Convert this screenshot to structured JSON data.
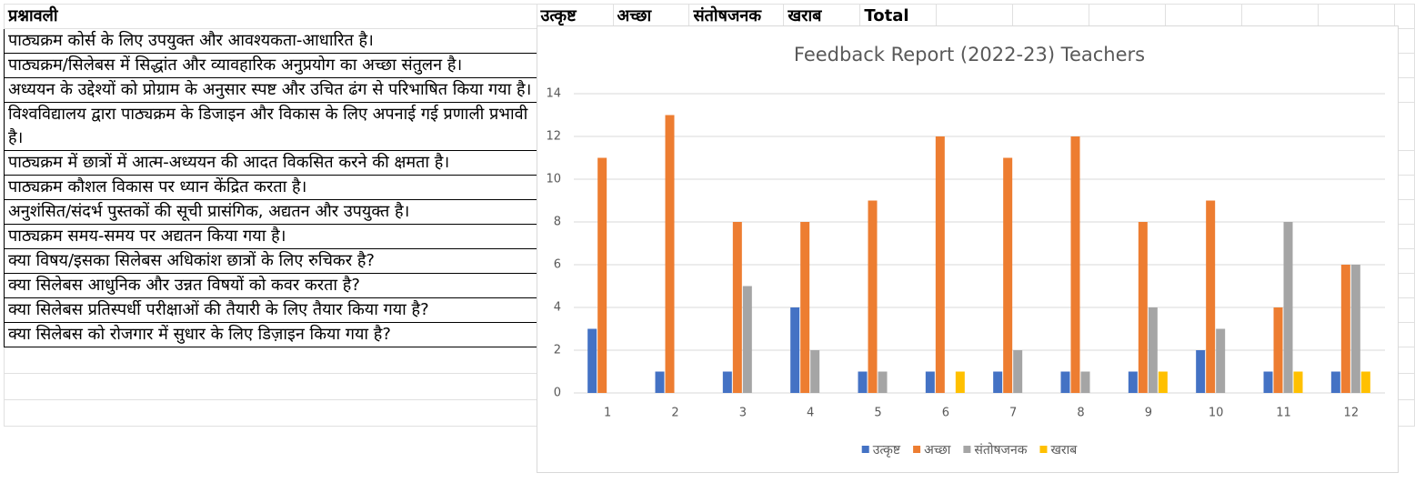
{
  "sheet": {
    "headers": [
      "प्रश्नावली",
      "उत्कृष्ट",
      "अच्छा",
      "संतोषजनक",
      "खराब",
      "Total"
    ],
    "rows": [
      "पाठ्यक्रम कोर्स के लिए उपयुक्त और आवश्यकता-आधारित है।",
      "पाठ्यक्रम/सिलेबस में सिद्धांत और व्यावहारिक अनुप्रयोग का अच्छा संतुलन है।",
      "अध्ययन के उद्देश्यों को प्रोग्राम के अनुसार स्पष्ट और उचित ढंग से परिभाषित किया गया है।",
      "विश्वविद्यालय द्वारा पाठ्यक्रम के डिजाइन और विकास के लिए अपनाई गई प्रणाली प्रभावी है।",
      "पाठ्यक्रम में छात्रों में आत्म-अध्ययन की आदत विकसित करने की क्षमता है।",
      "पाठ्यक्रम कौशल विकास पर ध्यान केंद्रित करता है।",
      "अनुशंसित/संदर्भ पुस्तकों की सूची प्रासंगिक, अद्यतन और उपयुक्त है।",
      "पाठ्यक्रम समय-समय पर अद्यतन किया गया है।",
      "क्या विषय/इसका सिलेबस अधिकांश छात्रों के लिए रुचिकर है?",
      "क्या सिलेबस आधुनिक और उन्नत विषयों को कवर करता है?",
      "क्या सिलेबस प्रतिस्पर्धी परीक्षाओं की तैयारी के लिए तैयार किया गया है?",
      "क्या सिलेबस को रोजगार में सुधार के लिए डिज़ाइन किया गया है?"
    ]
  },
  "chart_data": {
    "type": "bar",
    "title": "Feedback Report (2022-23) Teachers",
    "categories": [
      "1",
      "2",
      "3",
      "4",
      "5",
      "6",
      "7",
      "8",
      "9",
      "10",
      "11",
      "12"
    ],
    "series": [
      {
        "name": "उत्कृष्ट",
        "color": "#4472c4",
        "values": [
          3,
          1,
          1,
          4,
          1,
          1,
          1,
          1,
          1,
          2,
          1,
          1
        ]
      },
      {
        "name": "अच्छा",
        "color": "#ed7d31",
        "values": [
          11,
          13,
          8,
          8,
          9,
          12,
          11,
          12,
          8,
          9,
          4,
          6
        ]
      },
      {
        "name": "संतोषजनक",
        "color": "#a5a5a5",
        "values": [
          0,
          0,
          5,
          2,
          1,
          0,
          2,
          1,
          4,
          3,
          8,
          6
        ]
      },
      {
        "name": "खराब",
        "color": "#ffc000",
        "values": [
          0,
          0,
          0,
          0,
          0,
          1,
          0,
          0,
          1,
          0,
          1,
          1
        ]
      }
    ],
    "ylim": [
      0,
      14
    ],
    "yticks": [
      0,
      2,
      4,
      6,
      8,
      10,
      12,
      14
    ],
    "grid": true,
    "legend": "bottom"
  }
}
